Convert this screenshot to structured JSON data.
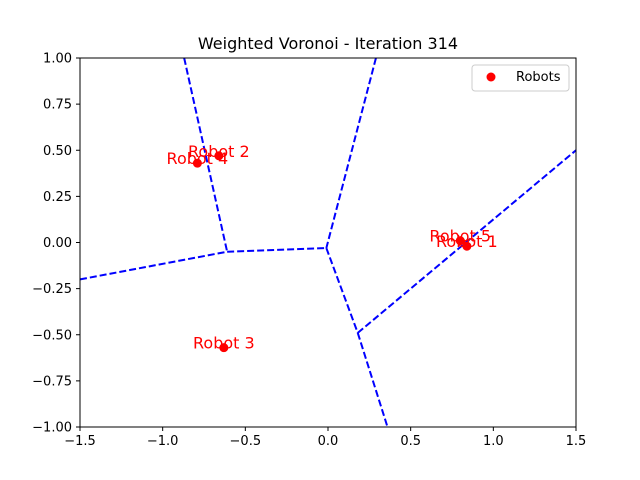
{
  "chart_data": {
    "type": "scatter",
    "title": "Weighted Voronoi - Iteration 314",
    "xlabel": "",
    "ylabel": "",
    "xlim": [
      -1.5,
      1.5
    ],
    "ylim": [
      -1.0,
      1.0
    ],
    "x_ticks": [
      -1.5,
      -1.0,
      -0.5,
      0.0,
      0.5,
      1.0,
      1.5
    ],
    "x_tick_labels": [
      "−1.5",
      "−1.0",
      "−0.5",
      "0.0",
      "0.5",
      "1.0",
      "1.5"
    ],
    "y_ticks": [
      1.0,
      0.75,
      0.5,
      0.25,
      0.0,
      -0.25,
      -0.5,
      -0.75,
      -1.0
    ],
    "y_tick_labels": [
      "1.00",
      "0.75",
      "0.50",
      "0.25",
      "0.00",
      "−0.25",
      "−0.50",
      "−0.75",
      "−1.00"
    ],
    "grid": false,
    "legend": {
      "placement": "top-right",
      "entries": [
        "Robots"
      ]
    },
    "colors": {
      "points": "#ff0000",
      "labels": "#ff0000",
      "edges": "#0000ff"
    },
    "series": [
      {
        "name": "Robots",
        "points": [
          {
            "label": "Robot 1",
            "x": 0.84,
            "y": -0.02
          },
          {
            "label": "Robot 2",
            "x": -0.66,
            "y": 0.47
          },
          {
            "label": "Robot 3",
            "x": -0.63,
            "y": -0.57
          },
          {
            "label": "Robot 4",
            "x": -0.79,
            "y": 0.43
          },
          {
            "label": "Robot 5",
            "x": 0.8,
            "y": 0.01
          }
        ]
      }
    ],
    "voronoi_edges": [
      {
        "from": [
          -0.87,
          1.0
        ],
        "to": [
          -0.61,
          -0.05
        ]
      },
      {
        "from": [
          -1.5,
          -0.2
        ],
        "to": [
          -0.61,
          -0.05
        ]
      },
      {
        "from": [
          -0.61,
          -0.05
        ],
        "to": [
          -0.01,
          -0.03
        ]
      },
      {
        "from": [
          0.29,
          1.0
        ],
        "to": [
          -0.01,
          -0.03
        ]
      },
      {
        "from": [
          -0.01,
          -0.03
        ],
        "to": [
          0.18,
          -0.49
        ]
      },
      {
        "from": [
          0.18,
          -0.49
        ],
        "to": [
          1.5,
          0.5
        ]
      },
      {
        "from": [
          0.18,
          -0.49
        ],
        "to": [
          0.36,
          -1.0
        ]
      }
    ]
  }
}
